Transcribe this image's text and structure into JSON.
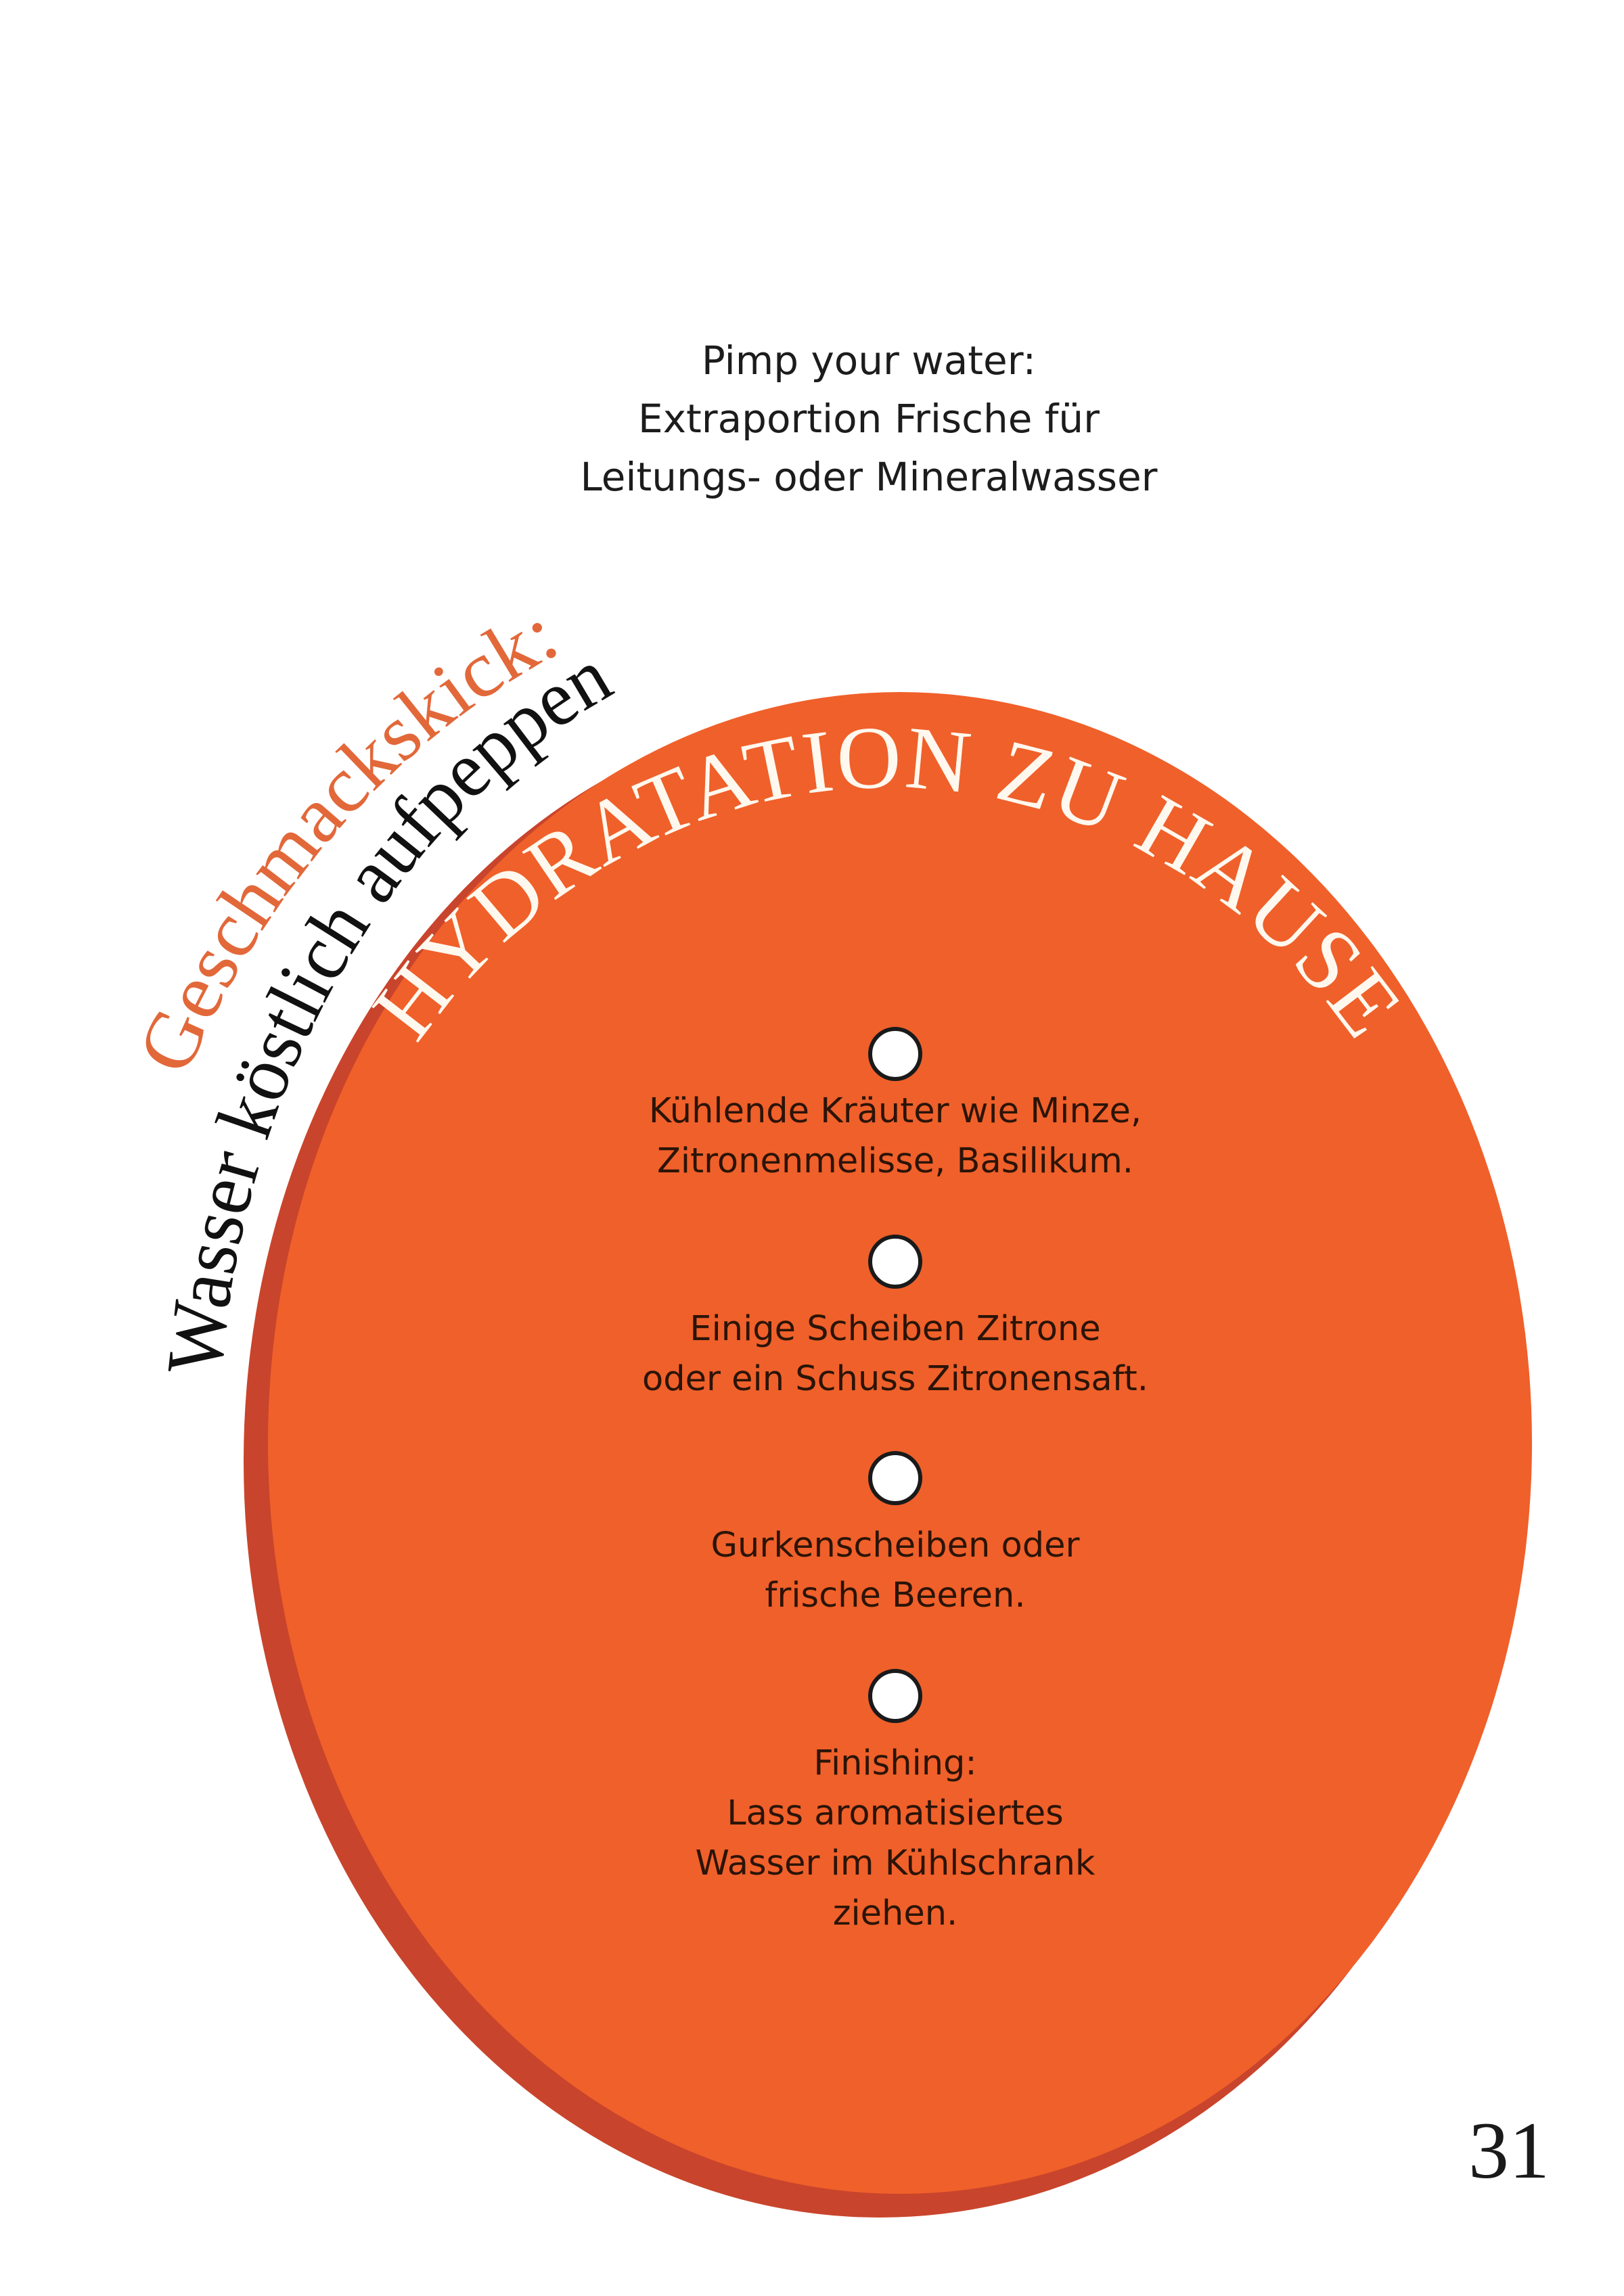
{
  "colors": {
    "disc": "#F0602A",
    "disc_shadow": "#C9442C",
    "title_text": "#FFF8EE",
    "accent_heading": "#E2683A",
    "body_text": "#2b1408"
  },
  "intro": {
    "lines": [
      "Pimp your water:",
      "Extraportion Frische für",
      "Leitungs- oder Mineralwasser"
    ]
  },
  "side_heading": {
    "accent": "Geschmackskick:",
    "subtitle": "Wasser köstlich aufpeppen"
  },
  "disc": {
    "title": "HYDRATATION ZU HAUSE",
    "items": [
      {
        "icon": "circle-bullet",
        "lines": [
          "Kühlende Kräuter wie Minze,",
          "Zitronenmelisse, Basilikum."
        ]
      },
      {
        "icon": "circle-bullet",
        "lines": [
          "Einige Scheiben Zitrone",
          "oder ein Schuss Zitronensaft."
        ]
      },
      {
        "icon": "circle-bullet",
        "lines": [
          "Gurkenscheiben oder",
          "frische Beeren."
        ]
      },
      {
        "icon": "circle-bullet",
        "lines": [
          "Finishing:",
          "Lass aromatisiertes",
          "Wasser im Kühlschrank",
          "ziehen."
        ]
      }
    ]
  },
  "page_number": "31"
}
